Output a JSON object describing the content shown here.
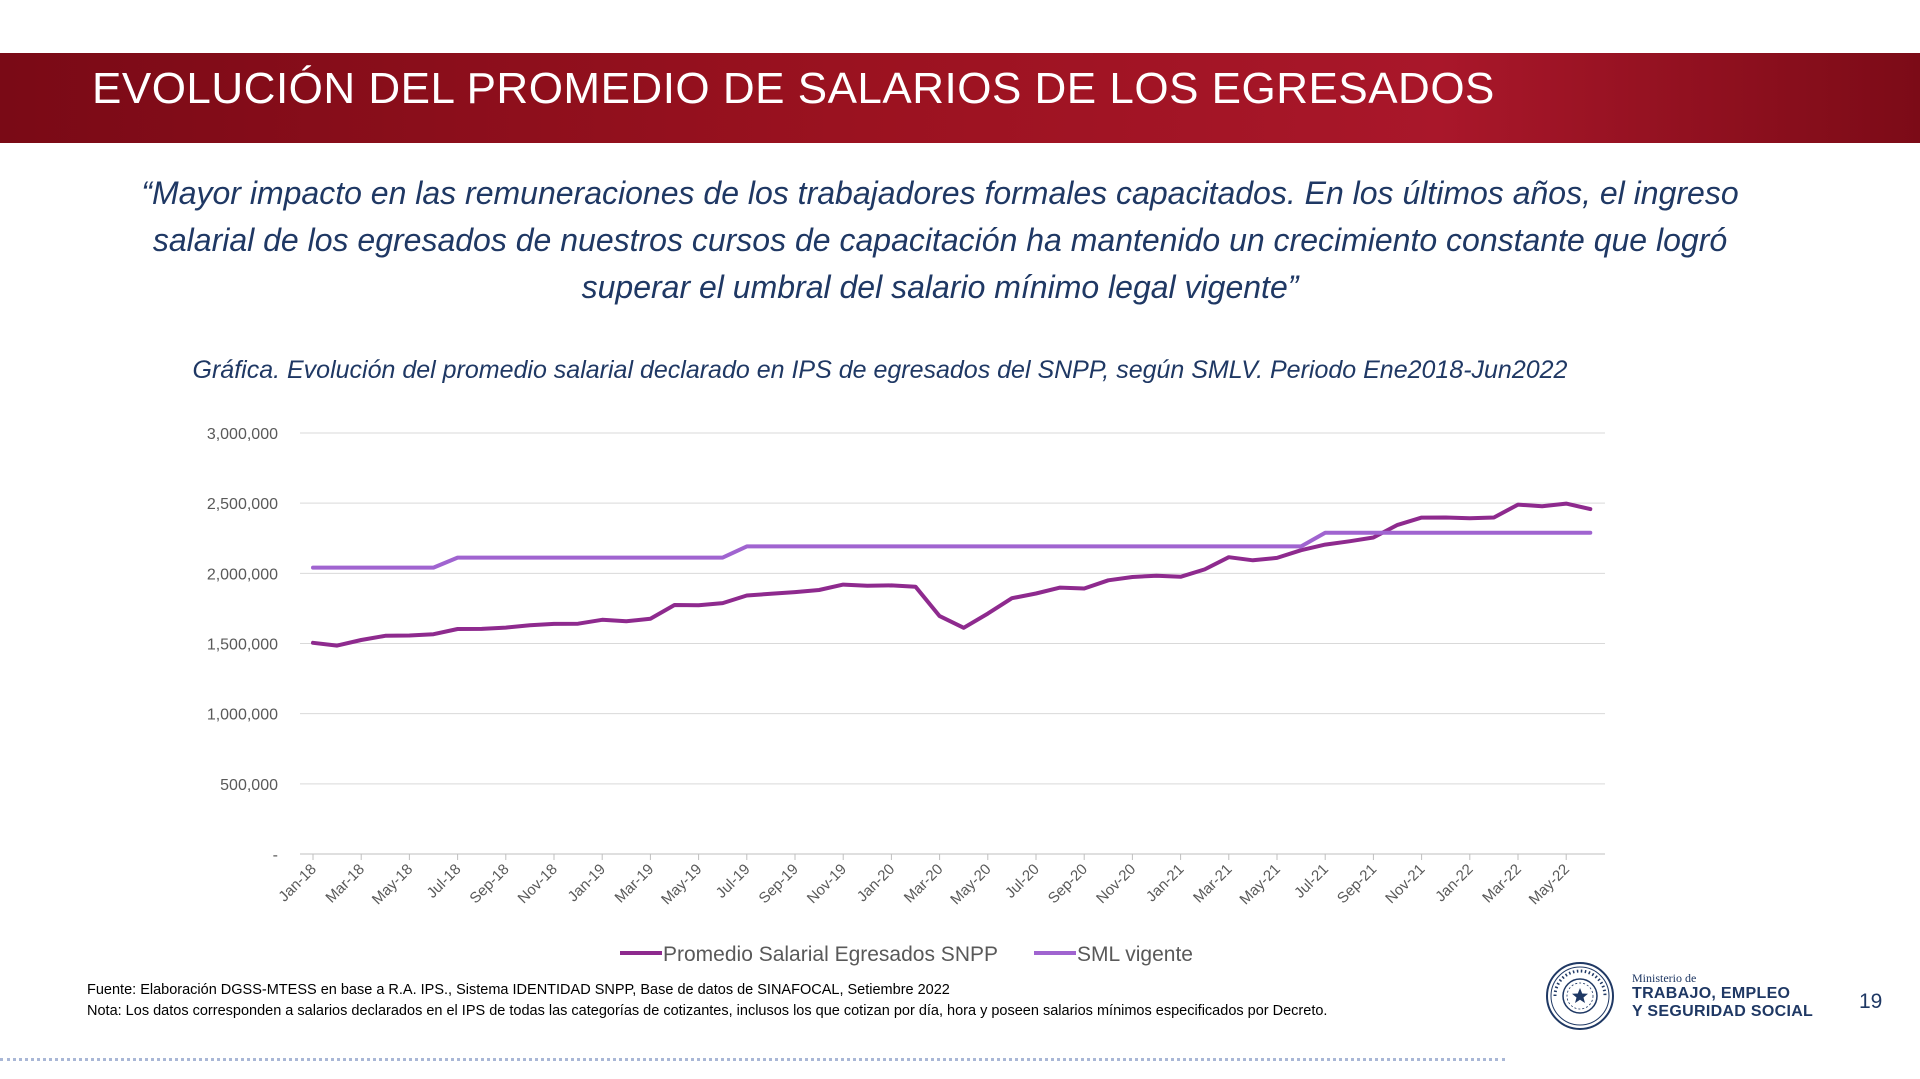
{
  "header": {
    "title": "EVOLUCIÓN DEL PROMEDIO DE SALARIOS DE LOS EGRESADOS"
  },
  "quote": "“Mayor impacto en las remuneraciones de los trabajadores formales capacitados. En los últimos años, el ingreso salarial de los egresados de nuestros cursos de capacitación ha mantenido un crecimiento constante que logró superar el umbral del salario mínimo legal vigente”",
  "chart_caption": "Gráfica. Evolución del promedio salarial declarado en IPS de egresados del SNPP, según SMLV. Periodo Ene2018-Jun2022",
  "chart_data": {
    "type": "line",
    "title": "",
    "xlabel": "",
    "ylabel": "",
    "ylim": [
      0,
      3000000
    ],
    "grid": true,
    "legend_position": "bottom",
    "y_ticks": [
      "-",
      "500,000",
      "1,000,000",
      "1,500,000",
      "2,000,000",
      "2,500,000",
      "3,000,000"
    ],
    "x_tick_labels": [
      "Jan-18",
      "Mar-18",
      "May-18",
      "Jul-18",
      "Sep-18",
      "Nov-18",
      "Jan-19",
      "Mar-19",
      "May-19",
      "Jul-19",
      "Sep-19",
      "Nov-19",
      "Jan-20",
      "Mar-20",
      "May-20",
      "Jul-20",
      "Sep-20",
      "Nov-20",
      "Jan-21",
      "Mar-21",
      "May-21",
      "Jul-21",
      "Sep-21",
      "Nov-21",
      "Jan-22",
      "Mar-22",
      "May-22"
    ],
    "x": [
      "Jan-18",
      "Feb-18",
      "Mar-18",
      "Apr-18",
      "May-18",
      "Jun-18",
      "Jul-18",
      "Aug-18",
      "Sep-18",
      "Oct-18",
      "Nov-18",
      "Dec-18",
      "Jan-19",
      "Feb-19",
      "Mar-19",
      "Apr-19",
      "May-19",
      "Jun-19",
      "Jul-19",
      "Aug-19",
      "Sep-19",
      "Oct-19",
      "Nov-19",
      "Dec-19",
      "Jan-20",
      "Feb-20",
      "Mar-20",
      "Apr-20",
      "May-20",
      "Jun-20",
      "Jul-20",
      "Aug-20",
      "Sep-20",
      "Oct-20",
      "Nov-20",
      "Dec-20",
      "Jan-21",
      "Feb-21",
      "Mar-21",
      "Apr-21",
      "May-21",
      "Jun-21",
      "Jul-21",
      "Aug-21",
      "Sep-21",
      "Oct-21",
      "Nov-21",
      "Dec-21",
      "Jan-22",
      "Feb-22",
      "Mar-22",
      "Apr-22",
      "May-22",
      "Jun-22"
    ],
    "series": [
      {
        "name": "Promedio Salarial Egresados SNPP",
        "color": "#8e2a8e",
        "values": [
          1505000,
          1485000,
          1525000,
          1555000,
          1557000,
          1566000,
          1603000,
          1604000,
          1613000,
          1630000,
          1640000,
          1641000,
          1669000,
          1658000,
          1677000,
          1774000,
          1773000,
          1788000,
          1842000,
          1854000,
          1866000,
          1881000,
          1920000,
          1911000,
          1914000,
          1905000,
          1695000,
          1612000,
          1713000,
          1823000,
          1856000,
          1898000,
          1892000,
          1950000,
          1974000,
          1983000,
          1975000,
          2028000,
          2115000,
          2093000,
          2110000,
          2165000,
          2205000,
          2228000,
          2255000,
          2345000,
          2397000,
          2398000,
          2393000,
          2398000,
          2490000,
          2478000,
          2497000,
          2458000
        ]
      },
      {
        "name": "SML vigente",
        "color": "#a064d0",
        "values": [
          2041000,
          2041000,
          2041000,
          2041000,
          2041000,
          2041000,
          2112000,
          2112000,
          2112000,
          2112000,
          2112000,
          2112000,
          2112000,
          2112000,
          2112000,
          2112000,
          2112000,
          2112000,
          2192000,
          2192000,
          2192000,
          2192000,
          2192000,
          2192000,
          2192000,
          2192000,
          2192000,
          2192000,
          2192000,
          2192000,
          2192000,
          2192000,
          2192000,
          2192000,
          2192000,
          2192000,
          2192000,
          2192000,
          2192000,
          2192000,
          2192000,
          2192000,
          2289000,
          2289000,
          2289000,
          2289000,
          2289000,
          2289000,
          2289000,
          2289000,
          2289000,
          2289000,
          2289000,
          2289000
        ]
      }
    ]
  },
  "footnote": {
    "source": "Fuente: Elaboración DGSS-MTESS en base a R.A. IPS., Sistema IDENTIDAD SNPP, Base de datos de SINAFOCAL, Setiembre 2022",
    "note": "Nota: Los datos corresponden a salarios declarados en el IPS de todas las categorías de cotizantes, inclusos los que cotizan por día, hora y poseen salarios mínimos especificados por Decreto."
  },
  "logo": {
    "small": "Ministerio de",
    "line1": "TRABAJO, EMPLEO",
    "line2": "Y SEGURIDAD SOCIAL",
    "seal_text": "REPÚBLICA DEL PARAGUAY"
  },
  "page_number": "19",
  "colors": {
    "header_red": "#9b1220",
    "text_navy": "#1f3864",
    "grid": "#d9d9d9"
  }
}
